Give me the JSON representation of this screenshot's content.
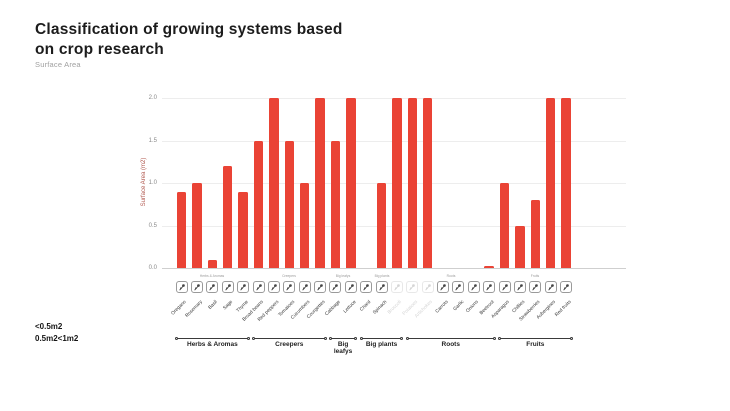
{
  "header": {
    "title_line1": "Classification of growing systems based",
    "title_line2": "on crop research",
    "subtitle": "Surface Area"
  },
  "legend": {
    "line1": "<0.5m2",
    "line2": "0.5m2<1m2"
  },
  "chart_data": {
    "type": "bar",
    "title": "Classification of growing systems based on crop research",
    "ylabel": "Surface Area (m2)",
    "ylim": [
      0,
      2.0
    ],
    "yticks": [
      0.0,
      0.5,
      1.0,
      1.5,
      2.0
    ],
    "grid": true,
    "bar_color": "#EA4335",
    "groups": [
      {
        "label": "Herbs & Aromas",
        "crops": [
          {
            "name": "Oregano",
            "value": 0.9
          },
          {
            "name": "Rosemary",
            "value": 1.0
          },
          {
            "name": "Basil",
            "value": 0.1
          },
          {
            "name": "Sage",
            "value": 1.2
          },
          {
            "name": "Thyme",
            "value": 0.9
          }
        ]
      },
      {
        "label": "Creepers",
        "crops": [
          {
            "name": "Broad beans",
            "value": 1.5
          },
          {
            "name": "Red peppers",
            "value": 2.0
          },
          {
            "name": "Tomatoes",
            "value": 1.5
          },
          {
            "name": "Cucumbers",
            "value": 1.0
          },
          {
            "name": "Courgettes",
            "value": 2.0
          }
        ]
      },
      {
        "label": "Big leafys",
        "crops": [
          {
            "name": "Cabbage",
            "value": 1.5
          },
          {
            "name": "Lettuce",
            "value": 2.0
          }
        ]
      },
      {
        "label": "Big plants",
        "crops": [
          {
            "name": "Chard",
            "value": 0
          },
          {
            "name": "Spinach",
            "value": 1.0
          },
          {
            "name": "Broccoli",
            "value": 2.0,
            "faded": true
          }
        ]
      },
      {
        "label": "Roots",
        "crops": [
          {
            "name": "Potatoes",
            "value": 2.0,
            "faded": true
          },
          {
            "name": "Artichokes",
            "value": 2.0,
            "faded": true
          },
          {
            "name": "Carrots",
            "value": 0
          },
          {
            "name": "Garlic",
            "value": 0
          },
          {
            "name": "Onions",
            "value": 0
          },
          {
            "name": "Beetroot",
            "value": 0.02
          }
        ]
      },
      {
        "label": "Fruits",
        "crops": [
          {
            "name": "Asparagus",
            "value": 1.0
          },
          {
            "name": "Chillies",
            "value": 0.5
          },
          {
            "name": "Strawberries",
            "value": 0.8
          },
          {
            "name": "Aubergines",
            "value": 2.0
          },
          {
            "name": "Red fruits",
            "value": 2.0
          }
        ]
      }
    ]
  }
}
